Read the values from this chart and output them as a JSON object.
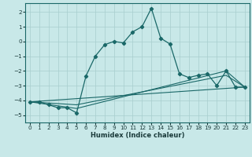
{
  "xlabel": "Humidex (Indice chaleur)",
  "background_color": "#c8e8e8",
  "grid_color": "#a8cece",
  "line_color": "#1a6868",
  "xlim": [
    -0.5,
    23.5
  ],
  "ylim": [
    -5.5,
    2.6
  ],
  "xticks": [
    0,
    1,
    2,
    3,
    4,
    5,
    6,
    7,
    8,
    9,
    10,
    11,
    12,
    13,
    14,
    15,
    16,
    17,
    18,
    19,
    20,
    21,
    22,
    23
  ],
  "yticks": [
    -5,
    -4,
    -3,
    -2,
    -1,
    0,
    1,
    2
  ],
  "curve_x": [
    0,
    1,
    2,
    3,
    4,
    5,
    6,
    7,
    8,
    9,
    10,
    11,
    12,
    13,
    14,
    15,
    16,
    17,
    18,
    19,
    20,
    21,
    22,
    23
  ],
  "curve_y": [
    -4.1,
    -4.1,
    -4.3,
    -4.5,
    -4.5,
    -4.85,
    -2.35,
    -1.0,
    -0.22,
    0.0,
    -0.1,
    0.65,
    1.0,
    2.25,
    0.22,
    -0.18,
    -2.2,
    -2.45,
    -2.3,
    -2.2,
    -3.0,
    -2.0,
    -3.1,
    -3.1
  ],
  "line1_x": [
    0,
    23
  ],
  "line1_y": [
    -4.1,
    -3.1
  ],
  "line2_x": [
    0,
    5,
    21,
    23
  ],
  "line2_y": [
    -4.1,
    -4.55,
    -2.0,
    -3.1
  ],
  "line3_x": [
    0,
    5,
    21,
    23
  ],
  "line3_y": [
    -4.1,
    -4.3,
    -2.3,
    -3.1
  ]
}
